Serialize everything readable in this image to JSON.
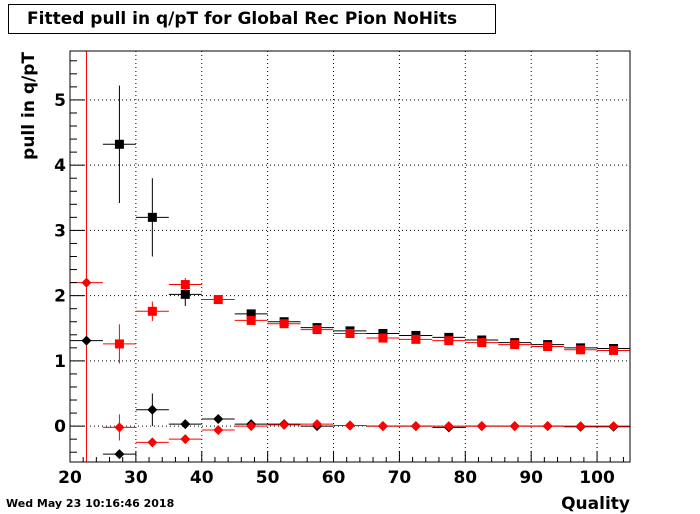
{
  "chart_title": "Fitted pull in q/pT for Global Rec Pion NoHits",
  "timestamp": "Wed May 23 10:16:46 2018",
  "chart_data": {
    "type": "scatter",
    "title": "Fitted pull in q/pT for Global Rec Pion NoHits",
    "xlabel": "Quality",
    "ylabel": "pull in q/pT",
    "xlim": [
      20,
      105
    ],
    "ylim": [
      -0.55,
      5.75
    ],
    "x_ticks": [
      20,
      30,
      40,
      50,
      60,
      70,
      80,
      90,
      100
    ],
    "y_ticks": [
      0,
      1,
      2,
      3,
      4,
      5
    ],
    "grid": true,
    "x_bin_halfwidth": 2.5,
    "vertical_marker_x": 22.5,
    "colors": {
      "black": "#000000",
      "red": "#ff0000"
    },
    "series": [
      {
        "marker": "square",
        "color": "#000000",
        "points": [
          {
            "x": 27.5,
            "y": 4.32,
            "err": 0.9
          },
          {
            "x": 32.5,
            "y": 3.2,
            "err": 0.6
          },
          {
            "x": 37.5,
            "y": 2.02,
            "err": 0.18
          },
          {
            "x": 47.5,
            "y": 1.72,
            "err": 0.05
          },
          {
            "x": 52.5,
            "y": 1.6,
            "err": 0.04
          },
          {
            "x": 57.5,
            "y": 1.51,
            "err": 0.03
          },
          {
            "x": 62.5,
            "y": 1.46,
            "err": 0.03
          },
          {
            "x": 67.5,
            "y": 1.42,
            "err": 0.03
          },
          {
            "x": 72.5,
            "y": 1.39,
            "err": 0.03
          },
          {
            "x": 77.5,
            "y": 1.36,
            "err": 0.03
          },
          {
            "x": 82.5,
            "y": 1.32,
            "err": 0.03
          },
          {
            "x": 87.5,
            "y": 1.28,
            "err": 0.03
          },
          {
            "x": 92.5,
            "y": 1.25,
            "err": 0.03
          },
          {
            "x": 97.5,
            "y": 1.2,
            "err": 0.03
          },
          {
            "x": 102.5,
            "y": 1.19,
            "err": 0.03
          }
        ]
      },
      {
        "marker": "square",
        "color": "#ff0000",
        "points": [
          {
            "x": 27.5,
            "y": 1.26,
            "err": 0.3
          },
          {
            "x": 32.5,
            "y": 1.76,
            "err": 0.15
          },
          {
            "x": 37.5,
            "y": 2.17,
            "err": 0.1
          },
          {
            "x": 42.5,
            "y": 1.94,
            "err": 0.05
          },
          {
            "x": 47.5,
            "y": 1.62,
            "err": 0.04
          },
          {
            "x": 52.5,
            "y": 1.57,
            "err": 0.03
          },
          {
            "x": 57.5,
            "y": 1.48,
            "err": 0.03
          },
          {
            "x": 62.5,
            "y": 1.42,
            "err": 0.03
          },
          {
            "x": 67.5,
            "y": 1.35,
            "err": 0.03
          },
          {
            "x": 72.5,
            "y": 1.33,
            "err": 0.03
          },
          {
            "x": 77.5,
            "y": 1.31,
            "err": 0.03
          },
          {
            "x": 82.5,
            "y": 1.28,
            "err": 0.03
          },
          {
            "x": 87.5,
            "y": 1.25,
            "err": 0.03
          },
          {
            "x": 92.5,
            "y": 1.22,
            "err": 0.03
          },
          {
            "x": 97.5,
            "y": 1.17,
            "err": 0.03
          },
          {
            "x": 102.5,
            "y": 1.16,
            "err": 0.03
          }
        ]
      },
      {
        "marker": "diamond",
        "color": "#000000",
        "points": [
          {
            "x": 22.5,
            "y": 1.31,
            "err": 0.0
          },
          {
            "x": 27.5,
            "y": -0.43,
            "err": 0.05
          },
          {
            "x": 32.5,
            "y": 0.25,
            "err": 0.25
          },
          {
            "x": 37.5,
            "y": 0.03,
            "err": 0.04
          },
          {
            "x": 42.5,
            "y": 0.11,
            "err": 0.03
          },
          {
            "x": 47.5,
            "y": 0.03,
            "err": 0.02
          },
          {
            "x": 52.5,
            "y": 0.03,
            "err": 0.02
          },
          {
            "x": 57.5,
            "y": 0.0,
            "err": 0.02
          },
          {
            "x": 62.5,
            "y": 0.01,
            "err": 0.02
          },
          {
            "x": 67.5,
            "y": 0.0,
            "err": 0.02
          },
          {
            "x": 72.5,
            "y": 0.0,
            "err": 0.02
          },
          {
            "x": 77.5,
            "y": -0.02,
            "err": 0.02
          },
          {
            "x": 82.5,
            "y": 0.0,
            "err": 0.02
          },
          {
            "x": 87.5,
            "y": 0.0,
            "err": 0.02
          },
          {
            "x": 92.5,
            "y": 0.0,
            "err": 0.02
          },
          {
            "x": 97.5,
            "y": -0.01,
            "err": 0.02
          },
          {
            "x": 102.5,
            "y": -0.01,
            "err": 0.02
          }
        ]
      },
      {
        "marker": "diamond",
        "color": "#ff0000",
        "points": [
          {
            "x": 22.5,
            "y": 2.2,
            "err": 0.0
          },
          {
            "x": 27.5,
            "y": -0.02,
            "err": 0.2
          },
          {
            "x": 32.5,
            "y": -0.25,
            "err": 0.07
          },
          {
            "x": 37.5,
            "y": -0.2,
            "err": 0.05
          },
          {
            "x": 42.5,
            "y": -0.06,
            "err": 0.03
          },
          {
            "x": 47.5,
            "y": 0.0,
            "err": 0.02
          },
          {
            "x": 52.5,
            "y": 0.02,
            "err": 0.02
          },
          {
            "x": 57.5,
            "y": 0.03,
            "err": 0.02
          },
          {
            "x": 62.5,
            "y": 0.01,
            "err": 0.02
          },
          {
            "x": 67.5,
            "y": 0.0,
            "err": 0.02
          },
          {
            "x": 72.5,
            "y": 0.0,
            "err": 0.02
          },
          {
            "x": 77.5,
            "y": 0.0,
            "err": 0.02
          },
          {
            "x": 82.5,
            "y": 0.0,
            "err": 0.02
          },
          {
            "x": 87.5,
            "y": 0.0,
            "err": 0.02
          },
          {
            "x": 92.5,
            "y": 0.0,
            "err": 0.02
          },
          {
            "x": 97.5,
            "y": 0.0,
            "err": 0.02
          },
          {
            "x": 102.5,
            "y": 0.0,
            "err": 0.02
          }
        ]
      }
    ]
  }
}
